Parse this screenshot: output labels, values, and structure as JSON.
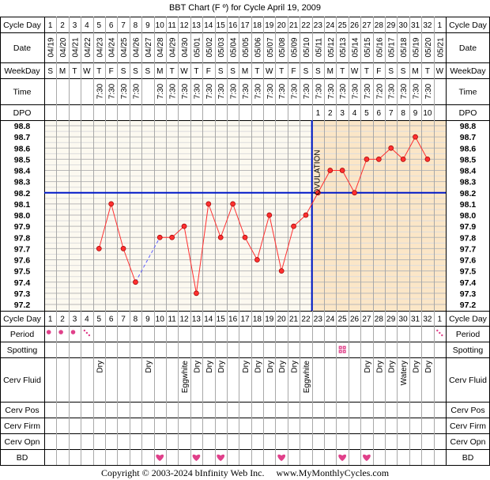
{
  "title": "BBT Chart (F º) for Cycle April 19, 2009",
  "copyright": "Copyright © 2003-2024 bInfinity Web Inc.     www.MyMonthlyCycles.com",
  "row_labels": {
    "cycle_day": "Cycle Day",
    "date": "Date",
    "weekday": "WeekDay",
    "time": "Time",
    "dpo": "DPO",
    "period": "Period",
    "spotting": "Spotting",
    "cerv_fluid": "Cerv Fluid",
    "cerv_pos": "Cerv Pos",
    "cerv_firm": "Cerv Firm",
    "cerv_opn": "Cerv Opn",
    "bd": "BD"
  },
  "ovulation_label": "OVULATION",
  "colors": {
    "grid_bg_pre": "#fcf9f0",
    "grid_bg_post": "#fbe6c7",
    "temp_line": "#ff3030",
    "temp_dot": "#ff3030",
    "coverline": "#0018c8",
    "heart": "#e0408a",
    "period_dot": "#e0408a"
  },
  "chart_data": {
    "type": "line",
    "title": "BBT Chart (F º) for Cycle April 19, 2009",
    "cycle_days": [
      "1",
      "2",
      "3",
      "4",
      "5",
      "6",
      "7",
      "8",
      "9",
      "10",
      "11",
      "12",
      "13",
      "14",
      "15",
      "16",
      "17",
      "18",
      "19",
      "20",
      "21",
      "22",
      "23",
      "24",
      "25",
      "26",
      "27",
      "28",
      "29",
      "30",
      "31",
      "32",
      "1"
    ],
    "dates": [
      "04/19",
      "04/20",
      "04/21",
      "04/22",
      "04/23",
      "04/24",
      "04/25",
      "04/26",
      "04/27",
      "04/28",
      "04/29",
      "04/30",
      "05/01",
      "05/02",
      "05/03",
      "05/04",
      "05/05",
      "05/06",
      "05/07",
      "05/08",
      "05/09",
      "05/10",
      "05/11",
      "05/12",
      "05/13",
      "05/14",
      "05/15",
      "05/16",
      "05/17",
      "05/18",
      "05/19",
      "05/20",
      "05/21"
    ],
    "weekdays": [
      "S",
      "M",
      "T",
      "W",
      "T",
      "F",
      "S",
      "S",
      "S",
      "M",
      "T",
      "W",
      "T",
      "F",
      "S",
      "S",
      "M",
      "T",
      "W",
      "T",
      "F",
      "S",
      "S",
      "M",
      "T",
      "W",
      "T",
      "F",
      "S",
      "S",
      "M",
      "T",
      "W"
    ],
    "times": [
      "",
      "",
      "",
      "",
      "7:30",
      "7:30",
      "7:30",
      "7:30",
      "",
      "7:30",
      "7:30",
      "7:30",
      "7:30",
      "7:30",
      "7:30",
      "7:30",
      "7:30",
      "7:30",
      "7:30",
      "7:30",
      "7:30",
      "7:30",
      "7:30",
      "7:30",
      "7:30",
      "7:30",
      "7:30",
      "7:20",
      "7:30",
      "7:30",
      "7:30",
      "7:30",
      ""
    ],
    "dpo": [
      "",
      "",
      "",
      "",
      "",
      "",
      "",
      "",
      "",
      "",
      "",
      "",
      "",
      "",
      "",
      "",
      "",
      "",
      "",
      "",
      "",
      "",
      "1",
      "2",
      "3",
      "4",
      "5",
      "6",
      "7",
      "8",
      "9",
      "10",
      ""
    ],
    "temperatures": [
      null,
      null,
      null,
      null,
      97.7,
      98.1,
      97.7,
      97.4,
      null,
      97.8,
      97.8,
      97.9,
      97.3,
      98.1,
      97.8,
      98.1,
      97.8,
      97.6,
      98.0,
      97.5,
      97.9,
      98.0,
      98.2,
      98.4,
      98.4,
      98.2,
      98.5,
      98.5,
      98.6,
      98.5,
      98.7,
      98.5,
      null
    ],
    "ylim": [
      97.2,
      98.8
    ],
    "yticks": [
      "98.8",
      "98.7",
      "98.6",
      "98.5",
      "98.4",
      "98.3",
      "98.2",
      "98.1",
      "98.0",
      "97.9",
      "97.8",
      "97.7",
      "97.6",
      "97.5",
      "97.4",
      "97.3",
      "97.2"
    ],
    "coverline": 98.2,
    "ovulation_after_day": 22,
    "period": [
      true,
      true,
      true,
      "light",
      false,
      false,
      false,
      false,
      false,
      false,
      false,
      false,
      false,
      false,
      false,
      false,
      false,
      false,
      false,
      false,
      false,
      false,
      false,
      false,
      false,
      false,
      false,
      false,
      false,
      false,
      false,
      false,
      "light"
    ],
    "spotting": [
      false,
      false,
      false,
      false,
      false,
      false,
      false,
      false,
      false,
      false,
      false,
      false,
      false,
      false,
      false,
      false,
      false,
      false,
      false,
      false,
      false,
      false,
      false,
      false,
      true,
      false,
      false,
      false,
      false,
      false,
      false,
      false,
      false
    ],
    "cerv_fluid": [
      "",
      "",
      "",
      "",
      "Dry",
      "",
      "",
      "",
      "Dry",
      "",
      "",
      "Eggwhite",
      "Dry",
      "Dry",
      "Dry",
      "",
      "Dry",
      "Dry",
      "Dry",
      "Dry",
      "Dry",
      "Eggwhite",
      "",
      "",
      "",
      "",
      "Dry",
      "Dry",
      "Dry",
      "Watery",
      "Dry",
      "Dry",
      ""
    ],
    "bd": [
      false,
      false,
      false,
      false,
      false,
      false,
      false,
      false,
      false,
      true,
      false,
      false,
      true,
      false,
      true,
      false,
      false,
      false,
      false,
      true,
      false,
      false,
      false,
      false,
      true,
      false,
      true,
      false,
      false,
      false,
      false,
      false,
      false
    ]
  }
}
